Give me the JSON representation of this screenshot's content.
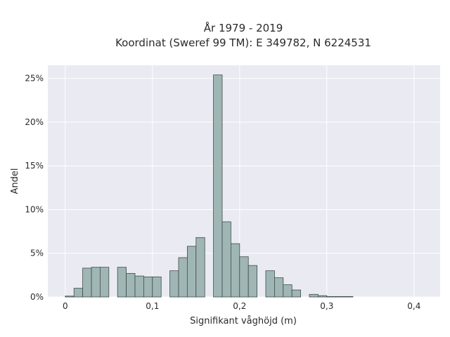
{
  "chart_data": {
    "type": "bar",
    "title_line1": "År 1979 - 2019",
    "title_line2": "Koordinat (Sweref 99 TM): E 349782, N 6224531",
    "xlabel": "Signifikant våghöjd (m)",
    "ylabel": "Andel",
    "xlim": [
      -0.02,
      0.43
    ],
    "ylim": [
      0,
      26.5
    ],
    "bin_width": 0.01,
    "x_ticks": [
      0,
      0.1,
      0.2,
      0.3,
      0.4
    ],
    "x_tick_labels": [
      "0",
      "0,1",
      "0,2",
      "0,3",
      "0,4"
    ],
    "y_ticks": [
      0,
      5,
      10,
      15,
      20,
      25
    ],
    "y_tick_labels": [
      "0%",
      "5%",
      "10%",
      "15%",
      "20%",
      "25%"
    ],
    "grid": true,
    "legend": "none",
    "bars": [
      {
        "x": 0.0,
        "value": 0.1
      },
      {
        "x": 0.01,
        "value": 1.0
      },
      {
        "x": 0.02,
        "value": 3.3
      },
      {
        "x": 0.03,
        "value": 3.4
      },
      {
        "x": 0.04,
        "value": 3.4
      },
      {
        "x": 0.06,
        "value": 3.4
      },
      {
        "x": 0.07,
        "value": 2.7
      },
      {
        "x": 0.08,
        "value": 2.4
      },
      {
        "x": 0.09,
        "value": 2.3
      },
      {
        "x": 0.1,
        "value": 2.3
      },
      {
        "x": 0.12,
        "value": 3.0
      },
      {
        "x": 0.13,
        "value": 4.5
      },
      {
        "x": 0.14,
        "value": 5.8
      },
      {
        "x": 0.15,
        "value": 6.8
      },
      {
        "x": 0.17,
        "value": 25.4
      },
      {
        "x": 0.18,
        "value": 8.6
      },
      {
        "x": 0.19,
        "value": 6.1
      },
      {
        "x": 0.2,
        "value": 4.6
      },
      {
        "x": 0.21,
        "value": 3.6
      },
      {
        "x": 0.23,
        "value": 3.0
      },
      {
        "x": 0.24,
        "value": 2.2
      },
      {
        "x": 0.25,
        "value": 1.4
      },
      {
        "x": 0.26,
        "value": 0.8
      },
      {
        "x": 0.28,
        "value": 0.3
      },
      {
        "x": 0.29,
        "value": 0.15
      },
      {
        "x": 0.3,
        "value": 0.05
      },
      {
        "x": 0.31,
        "value": 0.05
      },
      {
        "x": 0.32,
        "value": 0.05
      }
    ],
    "colors": {
      "plot_background": "#eaeaf2",
      "grid": "#ffffff",
      "bar_fill": "#9fb6b5",
      "bar_stroke": "#3f4b4a"
    }
  }
}
